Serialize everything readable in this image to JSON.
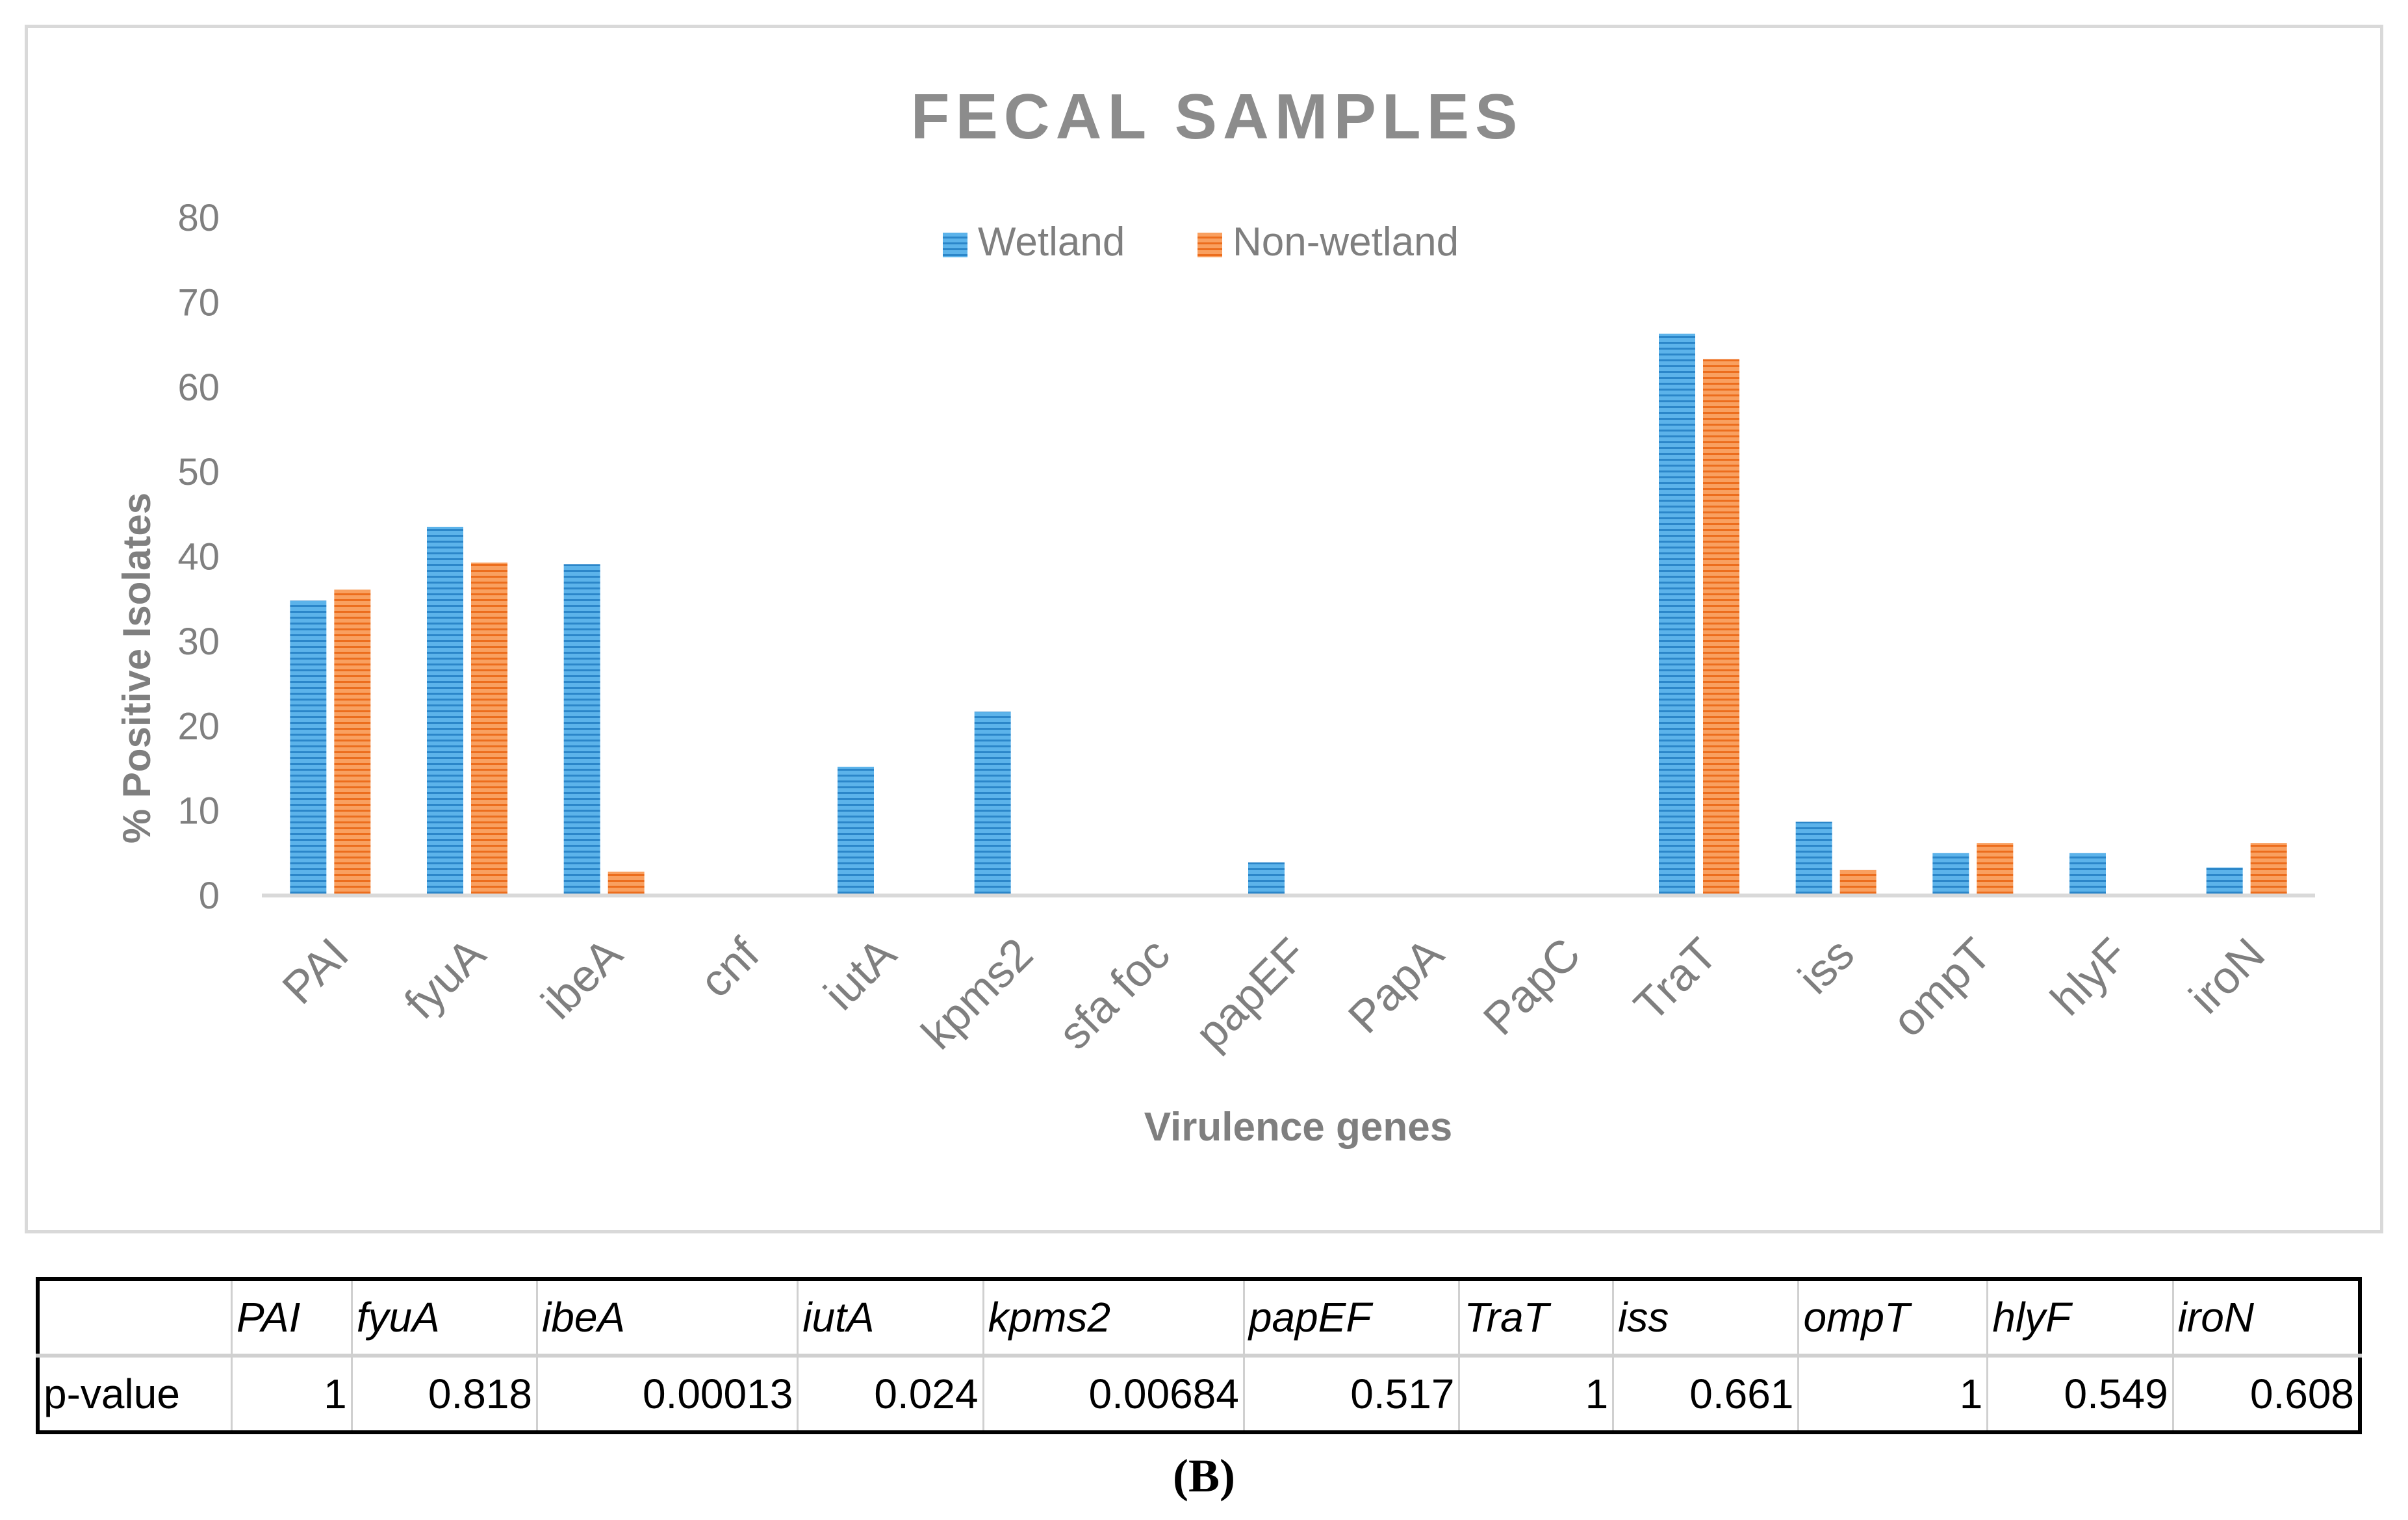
{
  "chart_data": {
    "type": "bar",
    "title": "FECAL SAMPLES",
    "xlabel": "Virulence genes",
    "ylabel": "% Positive Isolates",
    "ylim": [
      0,
      80
    ],
    "yticks": [
      0,
      10,
      20,
      30,
      40,
      50,
      60,
      70,
      80
    ],
    "grid": false,
    "legend_position": "top-center",
    "categories": [
      "PAI",
      "fyuA",
      "ibeA",
      "cnf",
      "iutA",
      "kpms2",
      "sfa foc",
      "papEF",
      "PapA",
      "PapC",
      "TraT",
      "iss",
      "ompT",
      "hlyF",
      "iroN"
    ],
    "series": [
      {
        "name": "Wetland",
        "color": "#3c9ddc",
        "values": [
          34.8,
          43.5,
          39.1,
          0,
          15.2,
          21.7,
          0,
          3.9,
          0,
          0,
          66.3,
          8.7,
          5.0,
          5.0,
          3.3
        ]
      },
      {
        "name": "Non-wetland",
        "color": "#f47f2f",
        "values": [
          36.1,
          39.3,
          2.8,
          0,
          0,
          0,
          0,
          0,
          0,
          0,
          63.3,
          3.0,
          6.2,
          0,
          6.2
        ]
      }
    ]
  },
  "pvalue_table": {
    "row_label": "p-value",
    "genes": [
      "PAI",
      "fyuA",
      "ibeA",
      "iutA",
      "kpms2",
      "papEF",
      "TraT",
      "iss",
      "ompT",
      "hlyF",
      "iroN"
    ],
    "values": [
      "1",
      "0.818",
      "0.00013",
      "0.024",
      "0.00684",
      "0.517",
      "1",
      "0.661",
      "1",
      "0.549",
      "0.608"
    ]
  },
  "panel_label": "(B)"
}
